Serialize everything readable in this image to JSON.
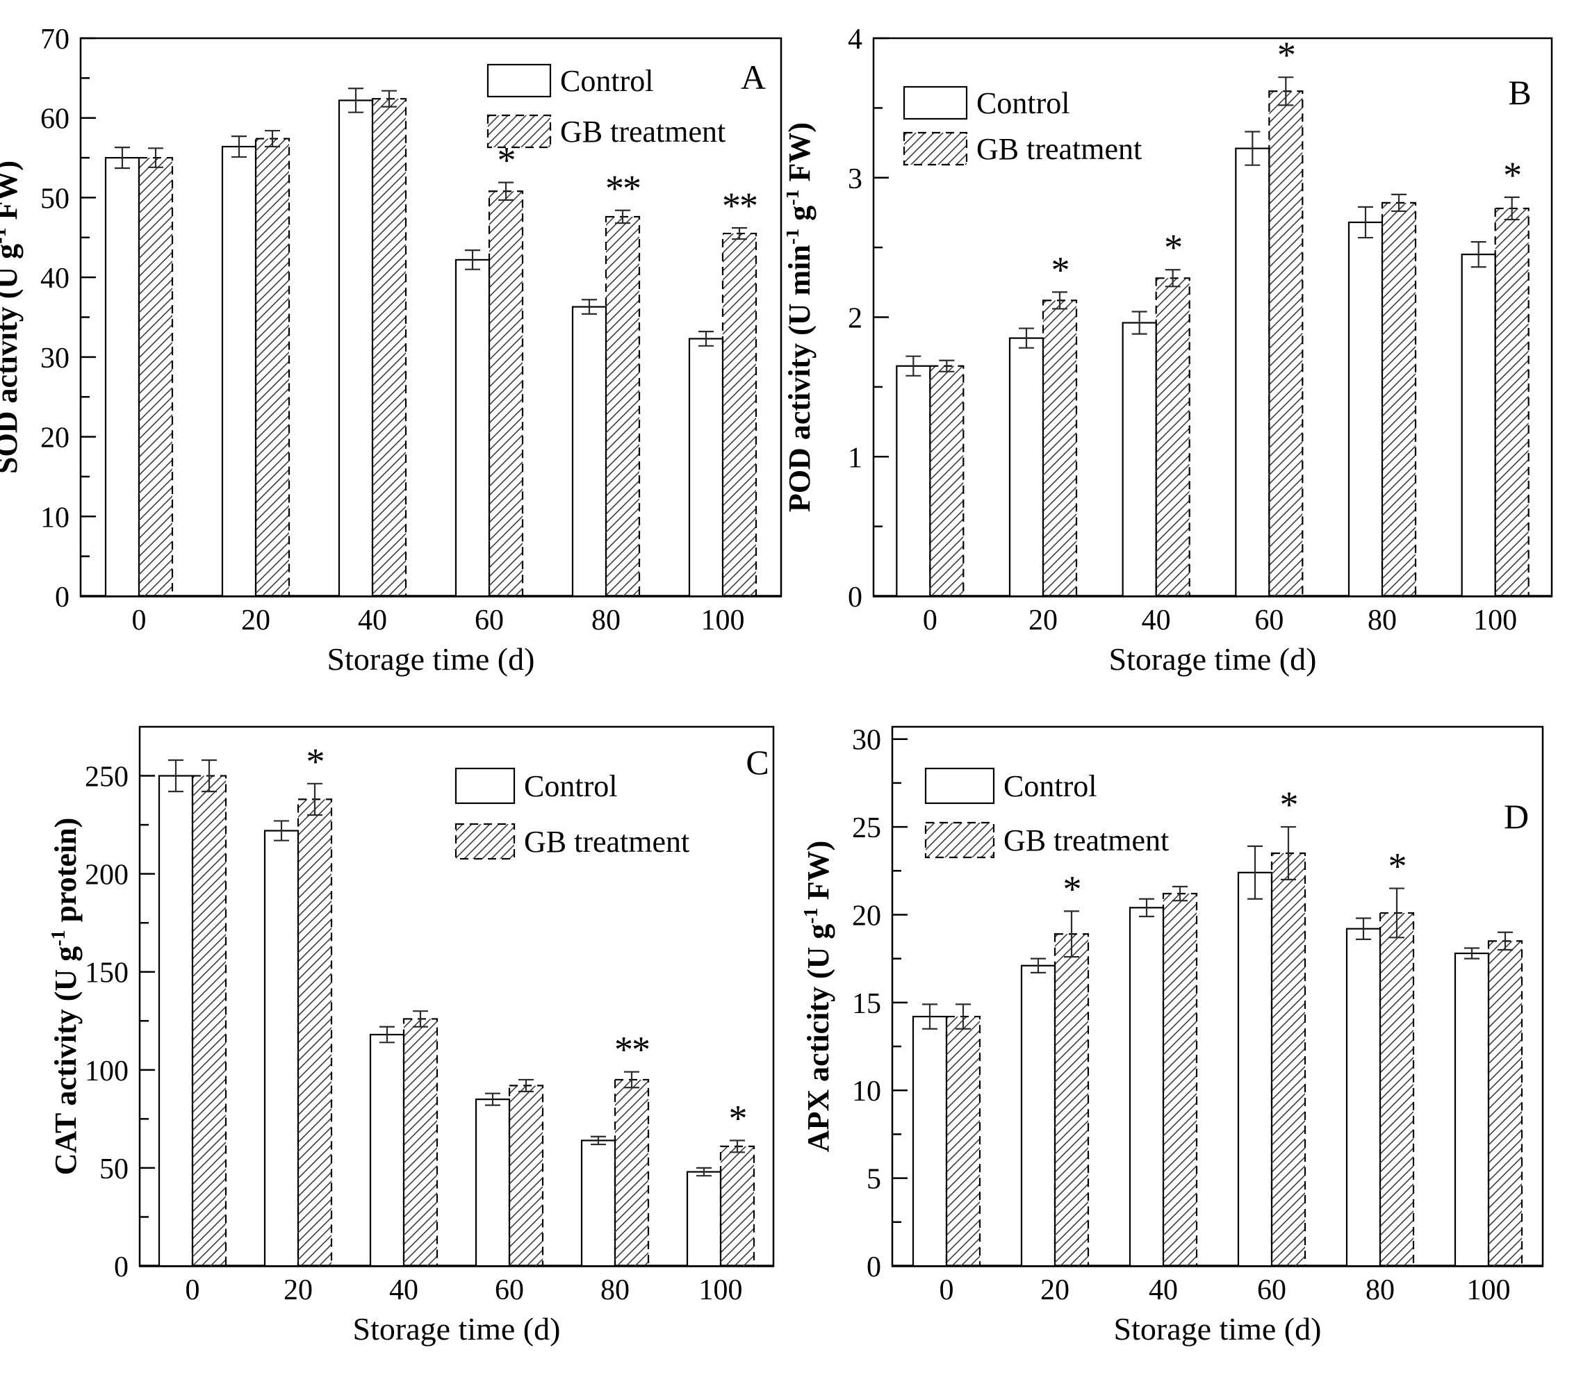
{
  "figure": {
    "background": "#ffffff",
    "ink_color": "#000000",
    "hatch_color": "#3c3c3c",
    "error_bar_color": "#2b2b2b"
  },
  "chart_data": [
    {
      "type": "bar",
      "panel_label": "A",
      "ylabel_parts": [
        {
          "t": "SOD activity (U g"
        },
        {
          "t": "-1",
          "sup": true
        },
        {
          "t": " FW)"
        }
      ],
      "xlabel": "Storage time (d)",
      "categories": [
        "0",
        "20",
        "40",
        "60",
        "80",
        "100"
      ],
      "ylim": [
        0,
        70
      ],
      "ytick_major": 10,
      "ytick_minor": 5,
      "grid": false,
      "legend_pos": "top-right",
      "series": [
        {
          "name": "Control",
          "style": "open",
          "values": [
            55.0,
            56.4,
            62.2,
            42.2,
            36.3,
            32.3
          ],
          "errors": [
            1.3,
            1.3,
            1.5,
            1.2,
            0.9,
            0.9
          ]
        },
        {
          "name": "GB treatment",
          "style": "hatched",
          "values": [
            55.0,
            57.4,
            62.4,
            50.8,
            47.6,
            45.5
          ],
          "errors": [
            1.2,
            1.0,
            1.0,
            1.1,
            0.8,
            0.7
          ]
        }
      ],
      "significance": [
        "",
        "",
        "",
        "*",
        "**",
        "**"
      ]
    },
    {
      "type": "bar",
      "panel_label": "B",
      "ylabel_parts": [
        {
          "t": "POD activity (U min"
        },
        {
          "t": "-1",
          "sup": true
        },
        {
          "t": " g"
        },
        {
          "t": "-1",
          "sup": true
        },
        {
          "t": " FW)"
        }
      ],
      "xlabel": "Storage time (d)",
      "categories": [
        "0",
        "20",
        "40",
        "60",
        "80",
        "100"
      ],
      "ylim": [
        0,
        4
      ],
      "ytick_major": 1,
      "ytick_minor": 0.5,
      "grid": false,
      "legend_pos": "top-left",
      "series": [
        {
          "name": "Control",
          "style": "open",
          "values": [
            1.65,
            1.85,
            1.96,
            3.21,
            2.68,
            2.45
          ],
          "errors": [
            0.07,
            0.07,
            0.08,
            0.12,
            0.11,
            0.09
          ]
        },
        {
          "name": "GB treatment",
          "style": "hatched",
          "values": [
            1.65,
            2.12,
            2.28,
            3.62,
            2.82,
            2.78
          ],
          "errors": [
            0.04,
            0.06,
            0.06,
            0.1,
            0.06,
            0.08
          ]
        }
      ],
      "significance": [
        "",
        "*",
        "*",
        "*",
        "",
        "*"
      ]
    },
    {
      "type": "bar",
      "panel_label": "C",
      "ylabel_parts": [
        {
          "t": "CAT activity (U g"
        },
        {
          "t": "-1",
          "sup": true
        },
        {
          "t": " protein)"
        }
      ],
      "xlabel": "Storage time (d)",
      "categories": [
        "0",
        "20",
        "40",
        "60",
        "80",
        "100"
      ],
      "ylim": [
        0,
        275
      ],
      "ytick_major": 50,
      "ytick_minor": 25,
      "grid": false,
      "legend_pos": "top-right",
      "series": [
        {
          "name": "Control",
          "style": "open",
          "values": [
            250,
            222,
            118,
            85,
            64,
            48
          ],
          "errors": [
            8,
            5,
            4,
            3,
            2,
            2
          ]
        },
        {
          "name": "GB treatment",
          "style": "hatched",
          "values": [
            250,
            238,
            126,
            92,
            95,
            61
          ],
          "errors": [
            8,
            8,
            4,
            3,
            4,
            3
          ]
        }
      ],
      "significance": [
        "",
        "*",
        "",
        "",
        "**",
        "*"
      ]
    },
    {
      "type": "bar",
      "panel_label": "D",
      "ylabel_parts": [
        {
          "t": "APX acticity (U g"
        },
        {
          "t": "-1",
          "sup": true
        },
        {
          "t": " FW)"
        }
      ],
      "xlabel": "Storage time (d)",
      "categories": [
        "0",
        "20",
        "40",
        "60",
        "80",
        "100"
      ],
      "ylim": [
        0,
        30.7
      ],
      "ytick_major": 5,
      "ytick_minor": 2.5,
      "grid": false,
      "legend_pos": "top-left",
      "series": [
        {
          "name": "Control",
          "style": "open",
          "values": [
            14.2,
            17.1,
            20.4,
            22.4,
            19.2,
            17.8
          ],
          "errors": [
            0.7,
            0.4,
            0.5,
            1.5,
            0.6,
            0.3
          ]
        },
        {
          "name": "GB treatment",
          "style": "hatched",
          "values": [
            14.2,
            18.9,
            21.2,
            23.5,
            20.1,
            18.5
          ],
          "errors": [
            0.7,
            1.3,
            0.4,
            1.5,
            1.4,
            0.5
          ]
        }
      ],
      "significance": [
        "",
        "*",
        "",
        "*",
        "*",
        ""
      ]
    }
  ]
}
